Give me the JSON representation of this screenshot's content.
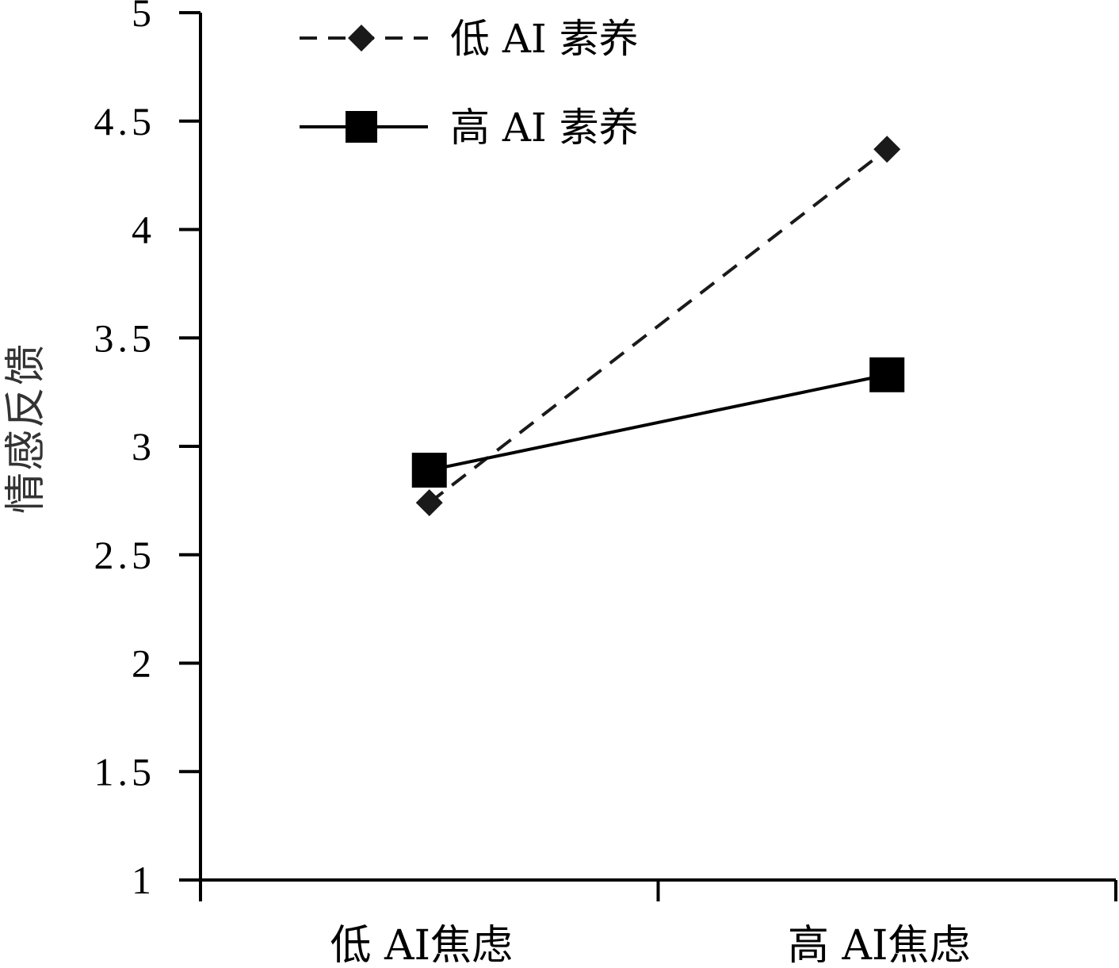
{
  "chart_data": {
    "type": "line",
    "title": "",
    "xlabel": "",
    "ylabel": "情感反馈",
    "ylim": [
      1,
      5
    ],
    "yticks": [
      "1",
      "1.5",
      "2",
      "2.5",
      "3",
      "3.5",
      "4",
      "4.5",
      "5"
    ],
    "categories": [
      "低 AI焦虑",
      "高 AI焦虑"
    ],
    "grid": false,
    "legend_position": "top-left",
    "series": [
      {
        "name": "低 AI 素养",
        "values": [
          2.74,
          4.37
        ],
        "line_style": "dashed",
        "marker": "diamond",
        "color": "#1a1a1a"
      },
      {
        "name": "高 AI 素养",
        "values": [
          2.89,
          3.33
        ],
        "line_style": "solid",
        "marker": "square",
        "color": "#000000"
      }
    ]
  }
}
